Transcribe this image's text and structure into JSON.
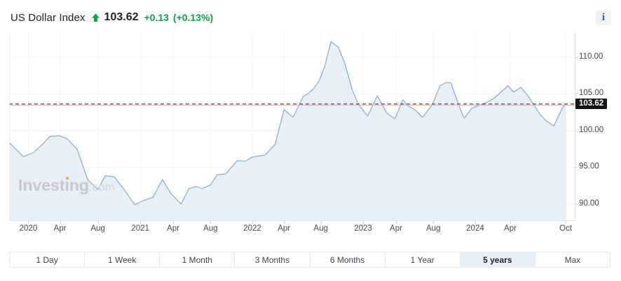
{
  "header": {
    "title": "US Dollar Index",
    "price": "103.62",
    "change": "+0.13",
    "change_pct": "(+0.13%)",
    "direction": "up",
    "info_icon": "i"
  },
  "watermark": {
    "text": "Investing.com",
    "p1": "Invest",
    "p2": "ı",
    "p3": "ng",
    "suffix": ".com"
  },
  "timeframes": {
    "buttons": [
      {
        "label": "1 Day",
        "selected": false
      },
      {
        "label": "1 Week",
        "selected": false
      },
      {
        "label": "1 Month",
        "selected": false
      },
      {
        "label": "3 Months",
        "selected": false
      },
      {
        "label": "6 Months",
        "selected": false
      },
      {
        "label": "1 Year",
        "selected": false
      },
      {
        "label": "5 years",
        "selected": true
      },
      {
        "label": "Max",
        "selected": false
      }
    ]
  },
  "chart_data": {
    "type": "area",
    "title": "US Dollar Index — 5 year chart",
    "xlabel": "",
    "ylabel": "",
    "ylim": [
      87.8,
      113.5
    ],
    "grid": true,
    "legend_position": "none",
    "current": {
      "value": 103.62,
      "label": "103.62"
    },
    "previous_close": 103.49,
    "y_ticks": [
      {
        "v": 110,
        "label": "110.00"
      },
      {
        "v": 105,
        "label": "105.00"
      },
      {
        "v": 100,
        "label": "100.00"
      },
      {
        "v": 95,
        "label": "95.00"
      },
      {
        "v": 90,
        "label": "90.00"
      }
    ],
    "x_ticks": [
      {
        "f": 0.034,
        "label": "2020"
      },
      {
        "f": 0.09,
        "label": "Apr"
      },
      {
        "f": 0.157,
        "label": "Aug"
      },
      {
        "f": 0.232,
        "label": "2021"
      },
      {
        "f": 0.29,
        "label": "Apr"
      },
      {
        "f": 0.356,
        "label": "Aug"
      },
      {
        "f": 0.43,
        "label": "2022"
      },
      {
        "f": 0.486,
        "label": "Apr"
      },
      {
        "f": 0.551,
        "label": "Aug"
      },
      {
        "f": 0.626,
        "label": "2023"
      },
      {
        "f": 0.684,
        "label": "Apr"
      },
      {
        "f": 0.75,
        "label": "Aug"
      },
      {
        "f": 0.824,
        "label": "2024"
      },
      {
        "f": 0.886,
        "label": "Apr"
      },
      {
        "f": 0.984,
        "label": "Oct"
      }
    ],
    "points": [
      [
        0.0,
        98.4
      ],
      [
        0.025,
        96.45
      ],
      [
        0.043,
        97.0
      ],
      [
        0.06,
        98.2
      ],
      [
        0.072,
        99.2
      ],
      [
        0.089,
        99.3
      ],
      [
        0.102,
        98.9
      ],
      [
        0.12,
        97.5
      ],
      [
        0.139,
        93.3
      ],
      [
        0.157,
        92.0
      ],
      [
        0.17,
        93.85
      ],
      [
        0.186,
        93.7
      ],
      [
        0.204,
        91.9
      ],
      [
        0.222,
        89.9
      ],
      [
        0.238,
        90.5
      ],
      [
        0.254,
        90.9
      ],
      [
        0.271,
        93.3
      ],
      [
        0.287,
        91.35
      ],
      [
        0.304,
        90.0
      ],
      [
        0.318,
        92.1
      ],
      [
        0.331,
        92.4
      ],
      [
        0.341,
        92.1
      ],
      [
        0.356,
        92.6
      ],
      [
        0.368,
        94.0
      ],
      [
        0.383,
        94.1
      ],
      [
        0.403,
        95.9
      ],
      [
        0.418,
        95.85
      ],
      [
        0.43,
        96.4
      ],
      [
        0.442,
        96.55
      ],
      [
        0.452,
        96.65
      ],
      [
        0.47,
        98.1
      ],
      [
        0.486,
        102.85
      ],
      [
        0.502,
        101.8
      ],
      [
        0.52,
        104.65
      ],
      [
        0.529,
        105.05
      ],
      [
        0.538,
        105.7
      ],
      [
        0.548,
        106.75
      ],
      [
        0.558,
        108.75
      ],
      [
        0.569,
        112.1
      ],
      [
        0.582,
        111.35
      ],
      [
        0.594,
        109.05
      ],
      [
        0.606,
        105.7
      ],
      [
        0.618,
        103.5
      ],
      [
        0.634,
        102.0
      ],
      [
        0.651,
        104.75
      ],
      [
        0.668,
        102.35
      ],
      [
        0.682,
        101.6
      ],
      [
        0.696,
        104.2
      ],
      [
        0.703,
        103.5
      ],
      [
        0.719,
        102.75
      ],
      [
        0.731,
        101.8
      ],
      [
        0.748,
        103.5
      ],
      [
        0.762,
        106.1
      ],
      [
        0.773,
        106.55
      ],
      [
        0.781,
        106.5
      ],
      [
        0.789,
        104.75
      ],
      [
        0.799,
        102.65
      ],
      [
        0.805,
        101.7
      ],
      [
        0.818,
        103.05
      ],
      [
        0.833,
        103.5
      ],
      [
        0.843,
        103.8
      ],
      [
        0.858,
        104.45
      ],
      [
        0.882,
        106.1
      ],
      [
        0.892,
        105.25
      ],
      [
        0.905,
        105.9
      ],
      [
        0.917,
        104.75
      ],
      [
        0.928,
        103.5
      ],
      [
        0.938,
        102.25
      ],
      [
        0.95,
        101.3
      ],
      [
        0.963,
        100.65
      ],
      [
        0.979,
        103.2
      ],
      [
        0.985,
        103.62
      ]
    ],
    "colors": {
      "line": "#8ab1d4",
      "fill": "#e9eff6",
      "current_price_line": "#3d3d3d",
      "prev_close_line": "#f3b3ad",
      "up_green": "#0fa14e",
      "badge_bg": "#161616"
    }
  }
}
